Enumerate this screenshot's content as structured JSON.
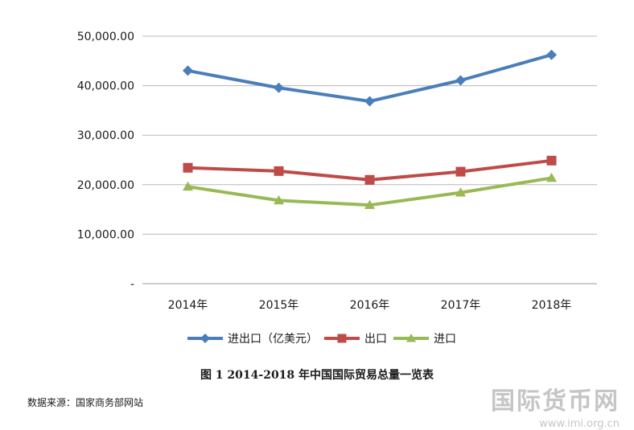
{
  "chart_data": {
    "type": "line",
    "categories": [
      "2014年",
      "2015年",
      "2016年",
      "2017年",
      "2018年"
    ],
    "series": [
      {
        "name": "进出口（亿美元）",
        "values": [
          43030,
          39570,
          36850,
          41070,
          46230
        ],
        "color": "#4a7ebb",
        "marker": "diamond"
      },
      {
        "name": "出口",
        "values": [
          23420,
          22750,
          20980,
          22630,
          24870
        ],
        "color": "#be4b48",
        "marker": "square"
      },
      {
        "name": "进口",
        "values": [
          19600,
          16820,
          15880,
          18410,
          21360
        ],
        "color": "#98b954",
        "marker": "triangle"
      }
    ],
    "yticks": [
      "-",
      "10,000.00",
      "20,000.00",
      "30,000.00",
      "40,000.00",
      "50,000.00"
    ],
    "ylim": [
      0,
      50000
    ],
    "grid": true,
    "legend_position": "bottom",
    "title": "图 1 2014-2018 年中国国际贸易总量一览表"
  },
  "source_note": "数据来源：国家商务部网站",
  "watermark": {
    "text": "国际货币网",
    "url": "www.imi.org.cn"
  }
}
